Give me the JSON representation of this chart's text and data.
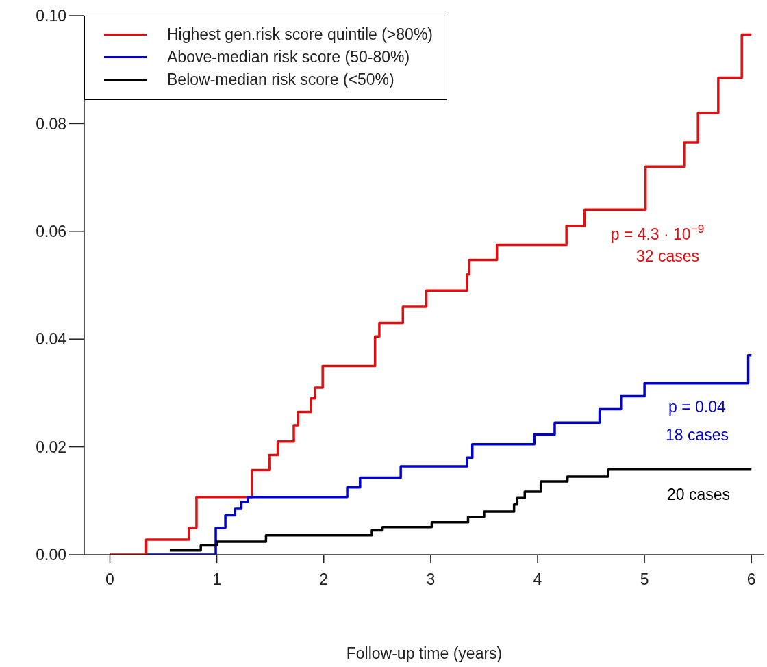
{
  "chart_data": {
    "type": "step",
    "xlabel": "Follow-up time (years)",
    "xlim": [
      -0.24,
      6.12
    ],
    "xticks": [
      0,
      1,
      2,
      3,
      4,
      5,
      6
    ],
    "ylim": [
      0,
      0.1
    ],
    "yticks": [
      {
        "value": 0,
        "label": "0.00"
      },
      {
        "value": 0.02,
        "label": "0.02"
      },
      {
        "value": 0.04,
        "label": "0.04"
      },
      {
        "value": 0.06,
        "label": "0.06"
      },
      {
        "value": 0.08,
        "label": "0.08"
      },
      {
        "value": 0.1,
        "label": "0.10"
      }
    ],
    "grid": false,
    "legend": "top left",
    "marker": "none",
    "line_style": "solid",
    "series": [
      {
        "name": "Highest gen.risk score quintile (>80%)",
        "color": "#dd1111",
        "x": [
          0,
          0.34,
          0.74,
          0.81,
          1.33,
          1.49,
          1.57,
          1.72,
          1.76,
          1.88,
          1.92,
          1.99,
          2.48,
          2.52,
          2.74,
          2.96,
          3.34,
          3.36,
          3.62,
          4.27,
          4.44,
          5.01,
          5.37,
          5.5,
          5.69,
          5.91,
          6.0
        ],
        "values": [
          0,
          0.0028,
          0.005,
          0.0107,
          0.0157,
          0.0185,
          0.021,
          0.024,
          0.0265,
          0.029,
          0.031,
          0.035,
          0.0405,
          0.043,
          0.046,
          0.049,
          0.052,
          0.0547,
          0.0575,
          0.061,
          0.064,
          0.072,
          0.0765,
          0.082,
          0.0885,
          0.0965,
          0.0965
        ]
      },
      {
        "name": "Above-median risk score (50-80%)",
        "color": "#0000cc",
        "x": [
          0.35,
          0.99,
          1.08,
          1.17,
          1.23,
          1.29,
          2.22,
          2.34,
          2.72,
          3.34,
          3.39,
          3.97,
          4.16,
          4.58,
          4.78,
          5.0,
          5.97,
          6.0
        ],
        "values": [
          0,
          0.005,
          0.0073,
          0.0085,
          0.0098,
          0.0107,
          0.0125,
          0.0143,
          0.0164,
          0.018,
          0.0205,
          0.0223,
          0.0245,
          0.027,
          0.0294,
          0.0318,
          0.037,
          0.037
        ]
      },
      {
        "name": "Below-median risk score (<50%)",
        "color": "#000000",
        "x": [
          0.56,
          0.85,
          1.0,
          1.46,
          2.45,
          2.55,
          3.01,
          3.35,
          3.5,
          3.78,
          3.81,
          3.88,
          4.03,
          4.28,
          4.66,
          6.0
        ],
        "values": [
          0.0008,
          0.0017,
          0.0024,
          0.0036,
          0.0045,
          0.0051,
          0.006,
          0.007,
          0.008,
          0.0093,
          0.0105,
          0.0117,
          0.0136,
          0.0145,
          0.0158,
          0.0158
        ]
      }
    ],
    "annotations": [
      "p = 4.3 · 10$^{−9}$",
      "32 cases",
      "p = 0.04",
      "18 cases",
      "20 cases"
    ]
  }
}
